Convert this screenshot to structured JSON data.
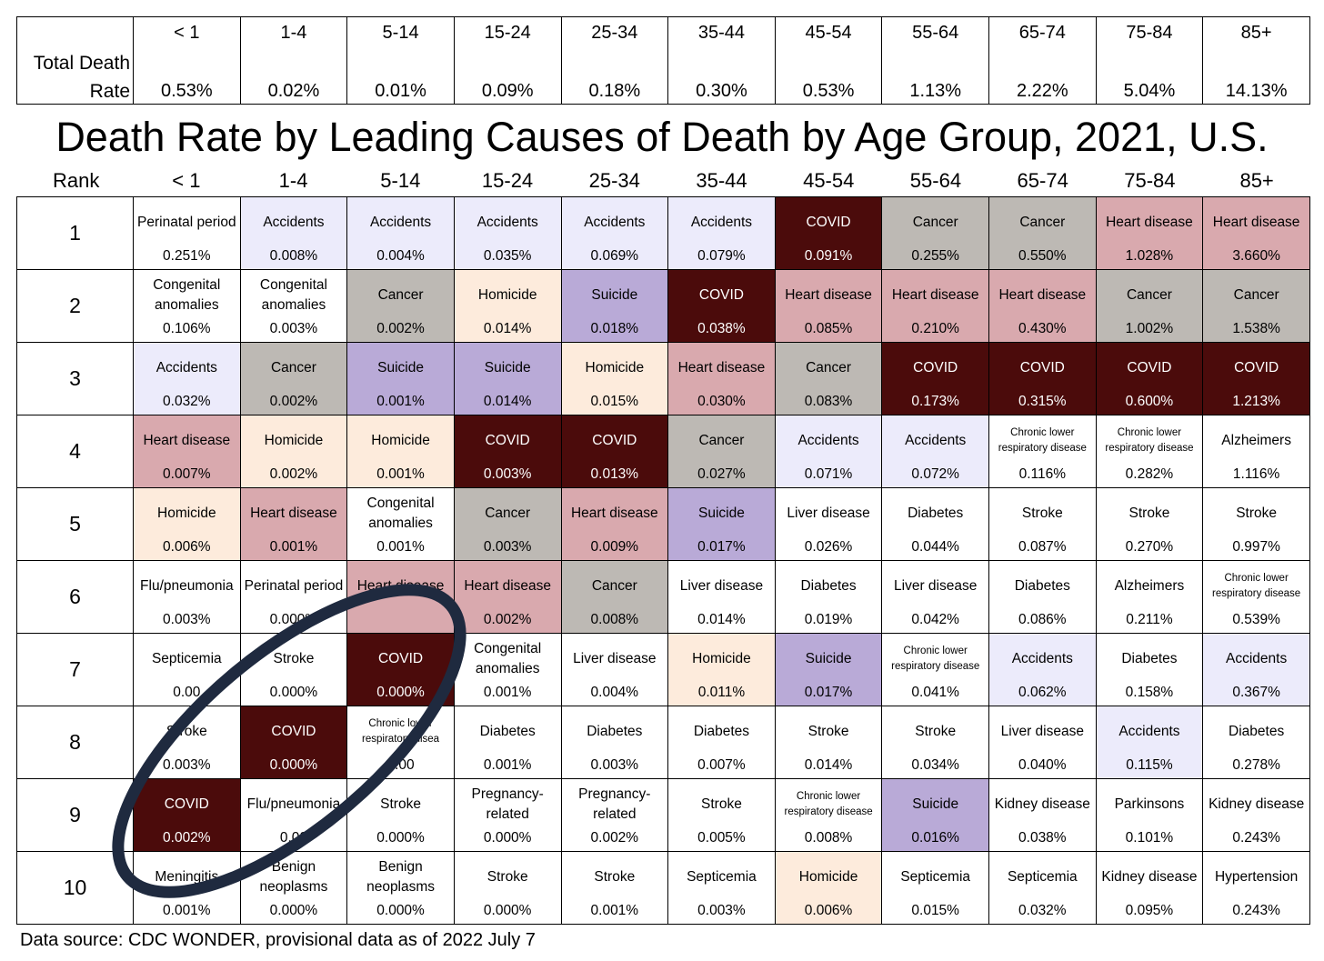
{
  "total_table": {
    "label_line1": "Total Death",
    "label_line2": "Rate",
    "ages": [
      "< 1",
      "1-4",
      "5-14",
      "15-24",
      "25-34",
      "35-44",
      "45-54",
      "55-64",
      "65-74",
      "75-84",
      "85+"
    ],
    "rates": [
      "0.53%",
      "0.02%",
      "0.01%",
      "0.09%",
      "0.18%",
      "0.30%",
      "0.53%",
      "1.13%",
      "2.22%",
      "5.04%",
      "14.13%"
    ]
  },
  "title": "Death Rate by Leading Causes of Death by Age Group, 2021, U.S.",
  "rank_header": "Rank",
  "age_groups": [
    "< 1",
    "1-4",
    "5-14",
    "15-24",
    "25-34",
    "35-44",
    "45-54",
    "55-64",
    "65-74",
    "75-84",
    "85+"
  ],
  "ranks": [
    "1",
    "2",
    "3",
    "4",
    "5",
    "6",
    "7",
    "8",
    "9",
    "10"
  ],
  "colors": {
    "covid": "#4b0b0b",
    "cancer": "#bdb9b4",
    "heart": "#d9a9ae",
    "accidents": "#ecebfb",
    "homicide": "#fdebdc",
    "suicide": "#b9aad7",
    "ellipse": "#1f2a3f"
  },
  "chart_data": {
    "type": "table",
    "title": "Death Rate by Leading Causes of Death by Age Group, 2021, U.S.",
    "columns": [
      "< 1",
      "1-4",
      "5-14",
      "15-24",
      "25-34",
      "35-44",
      "45-54",
      "55-64",
      "65-74",
      "75-84",
      "85+"
    ],
    "rows": [
      [
        [
          "Perinatal period",
          "0.251%",
          "none"
        ],
        [
          "Accidents",
          "0.008%",
          "accidents"
        ],
        [
          "Accidents",
          "0.004%",
          "accidents"
        ],
        [
          "Accidents",
          "0.035%",
          "accidents"
        ],
        [
          "Accidents",
          "0.069%",
          "accidents"
        ],
        [
          "Accidents",
          "0.079%",
          "accidents"
        ],
        [
          "COVID",
          "0.091%",
          "covid"
        ],
        [
          "Cancer",
          "0.255%",
          "cancer"
        ],
        [
          "Cancer",
          "0.550%",
          "cancer"
        ],
        [
          "Heart disease",
          "1.028%",
          "heart"
        ],
        [
          "Heart disease",
          "3.660%",
          "heart"
        ]
      ],
      [
        [
          "Congenital anomalies",
          "0.106%",
          "none"
        ],
        [
          "Congenital anomalies",
          "0.003%",
          "none"
        ],
        [
          "Cancer",
          "0.002%",
          "cancer"
        ],
        [
          "Homicide",
          "0.014%",
          "homicide"
        ],
        [
          "Suicide",
          "0.018%",
          "suicide"
        ],
        [
          "COVID",
          "0.038%",
          "covid"
        ],
        [
          "Heart disease",
          "0.085%",
          "heart"
        ],
        [
          "Heart disease",
          "0.210%",
          "heart"
        ],
        [
          "Heart disease",
          "0.430%",
          "heart"
        ],
        [
          "Cancer",
          "1.002%",
          "cancer"
        ],
        [
          "Cancer",
          "1.538%",
          "cancer"
        ]
      ],
      [
        [
          "Accidents",
          "0.032%",
          "accidents"
        ],
        [
          "Cancer",
          "0.002%",
          "cancer"
        ],
        [
          "Suicide",
          "0.001%",
          "suicide"
        ],
        [
          "Suicide",
          "0.014%",
          "suicide"
        ],
        [
          "Homicide",
          "0.015%",
          "homicide"
        ],
        [
          "Heart disease",
          "0.030%",
          "heart"
        ],
        [
          "Cancer",
          "0.083%",
          "cancer"
        ],
        [
          "COVID",
          "0.173%",
          "covid"
        ],
        [
          "COVID",
          "0.315%",
          "covid"
        ],
        [
          "COVID",
          "0.600%",
          "covid"
        ],
        [
          "COVID",
          "1.213%",
          "covid"
        ]
      ],
      [
        [
          "Heart disease",
          "0.007%",
          "heart"
        ],
        [
          "Homicide",
          "0.002%",
          "homicide"
        ],
        [
          "Homicide",
          "0.001%",
          "homicide"
        ],
        [
          "COVID",
          "0.003%",
          "covid"
        ],
        [
          "COVID",
          "0.013%",
          "covid"
        ],
        [
          "Cancer",
          "0.027%",
          "cancer"
        ],
        [
          "Accidents",
          "0.071%",
          "accidents"
        ],
        [
          "Accidents",
          "0.072%",
          "accidents"
        ],
        [
          "Chronic lower respiratory disease",
          "0.116%",
          "none"
        ],
        [
          "Chronic lower respiratory disease",
          "0.282%",
          "none"
        ],
        [
          "Alzheimers",
          "1.116%",
          "none"
        ]
      ],
      [
        [
          "Homicide",
          "0.006%",
          "homicide"
        ],
        [
          "Heart disease",
          "0.001%",
          "heart"
        ],
        [
          "Congenital anomalies",
          "0.001%",
          "none"
        ],
        [
          "Cancer",
          "0.003%",
          "cancer"
        ],
        [
          "Heart disease",
          "0.009%",
          "heart"
        ],
        [
          "Suicide",
          "0.017%",
          "suicide"
        ],
        [
          "Liver disease",
          "0.026%",
          "none"
        ],
        [
          "Diabetes",
          "0.044%",
          "none"
        ],
        [
          "Stroke",
          "0.087%",
          "none"
        ],
        [
          "Stroke",
          "0.270%",
          "none"
        ],
        [
          "Stroke",
          "0.997%",
          "none"
        ]
      ],
      [
        [
          "Flu/pneumonia",
          "0.003%",
          "none"
        ],
        [
          "Perinatal period",
          "0.000%",
          "none"
        ],
        [
          "Heart disease",
          "",
          "heart"
        ],
        [
          "Heart disease",
          "0.002%",
          "heart"
        ],
        [
          "Cancer",
          "0.008%",
          "cancer"
        ],
        [
          "Liver disease",
          "0.014%",
          "none"
        ],
        [
          "Diabetes",
          "0.019%",
          "none"
        ],
        [
          "Liver disease",
          "0.042%",
          "none"
        ],
        [
          "Diabetes",
          "0.086%",
          "none"
        ],
        [
          "Alzheimers",
          "0.211%",
          "none"
        ],
        [
          "Chronic lower respiratory disease",
          "0.539%",
          "none"
        ]
      ],
      [
        [
          "Septicemia",
          "0.00",
          "none"
        ],
        [
          "Stroke",
          "0.000%",
          "none"
        ],
        [
          "COVID",
          "0.000%",
          "covid"
        ],
        [
          "Congenital anomalies",
          "0.001%",
          "none"
        ],
        [
          "Liver disease",
          "0.004%",
          "none"
        ],
        [
          "Homicide",
          "0.011%",
          "homicide"
        ],
        [
          "Suicide",
          "0.017%",
          "suicide"
        ],
        [
          "Chronic lower respiratory disease",
          "0.041%",
          "none"
        ],
        [
          "Accidents",
          "0.062%",
          "accidents"
        ],
        [
          "Diabetes",
          "0.158%",
          "none"
        ],
        [
          "Accidents",
          "0.367%",
          "accidents"
        ]
      ],
      [
        [
          "Stroke",
          "0.003%",
          "none"
        ],
        [
          "COVID",
          "0.000%",
          "covid"
        ],
        [
          "Chronic lower respiratory disea",
          "0.00",
          "none"
        ],
        [
          "Diabetes",
          "0.001%",
          "none"
        ],
        [
          "Diabetes",
          "0.003%",
          "none"
        ],
        [
          "Diabetes",
          "0.007%",
          "none"
        ],
        [
          "Stroke",
          "0.014%",
          "none"
        ],
        [
          "Stroke",
          "0.034%",
          "none"
        ],
        [
          "Liver disease",
          "0.040%",
          "none"
        ],
        [
          "Accidents",
          "0.115%",
          "accidents"
        ],
        [
          "Diabetes",
          "0.278%",
          "none"
        ]
      ],
      [
        [
          "COVID",
          "0.002%",
          "covid"
        ],
        [
          "Flu/pneumonia",
          "0.00",
          "none"
        ],
        [
          "Stroke",
          "0.000%",
          "none"
        ],
        [
          "Pregnancy-related",
          "0.000%",
          "none"
        ],
        [
          "Pregnancy-related",
          "0.002%",
          "none"
        ],
        [
          "Stroke",
          "0.005%",
          "none"
        ],
        [
          "Chronic lower respiratory disease",
          "0.008%",
          "none"
        ],
        [
          "Suicide",
          "0.016%",
          "suicide"
        ],
        [
          "Kidney disease",
          "0.038%",
          "none"
        ],
        [
          "Parkinsons",
          "0.101%",
          "none"
        ],
        [
          "Kidney disease",
          "0.243%",
          "none"
        ]
      ],
      [
        [
          "Meningitis",
          "0.001%",
          "none"
        ],
        [
          "Benign neoplasms",
          "0.000%",
          "none"
        ],
        [
          "Benign neoplasms",
          "0.000%",
          "none"
        ],
        [
          "Stroke",
          "0.000%",
          "none"
        ],
        [
          "Stroke",
          "0.001%",
          "none"
        ],
        [
          "Septicemia",
          "0.003%",
          "none"
        ],
        [
          "Homicide",
          "0.006%",
          "homicide"
        ],
        [
          "Septicemia",
          "0.015%",
          "none"
        ],
        [
          "Septicemia",
          "0.032%",
          "none"
        ],
        [
          "Kidney disease",
          "0.095%",
          "none"
        ],
        [
          "Hypertension",
          "0.243%",
          "none"
        ]
      ]
    ]
  },
  "source": "Data source: CDC WONDER, provisional data as of 2022 July 7"
}
